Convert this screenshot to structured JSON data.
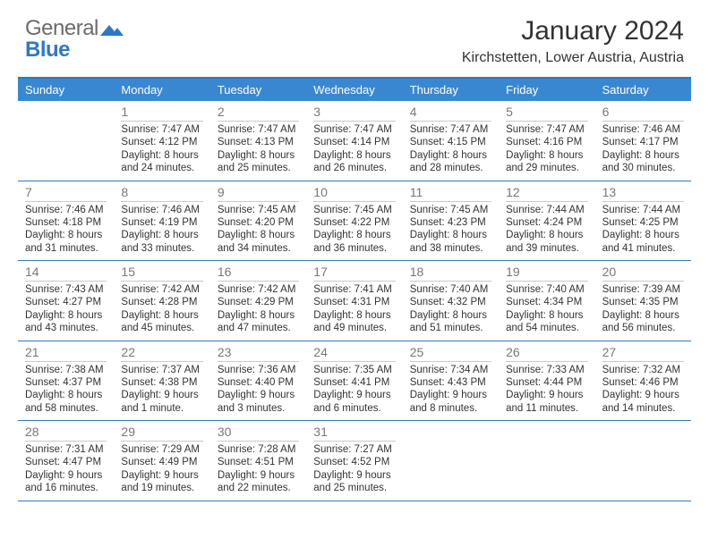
{
  "brand": {
    "word1": "General",
    "word2": "Blue",
    "text_color": "#6b6b6b",
    "accent_color": "#2f78c4"
  },
  "title": "January 2024",
  "subtitle": "Kirchstetten, Lower Austria, Austria",
  "calendar": {
    "header_bg": "#3a87d1",
    "header_text_color": "#ffffff",
    "rule_color": "#2f78c4",
    "cell_rule_color": "#c9c9c9",
    "daynum_color": "#777777",
    "body_text_color": "#333333",
    "body_fontsize": 11.5,
    "weekdays": [
      "Sunday",
      "Monday",
      "Tuesday",
      "Wednesday",
      "Thursday",
      "Friday",
      "Saturday"
    ],
    "weeks": [
      [
        {
          "num": "",
          "lines": [
            "",
            "",
            "",
            ""
          ]
        },
        {
          "num": "1",
          "lines": [
            "Sunrise: 7:47 AM",
            "Sunset: 4:12 PM",
            "Daylight: 8 hours",
            "and 24 minutes."
          ]
        },
        {
          "num": "2",
          "lines": [
            "Sunrise: 7:47 AM",
            "Sunset: 4:13 PM",
            "Daylight: 8 hours",
            "and 25 minutes."
          ]
        },
        {
          "num": "3",
          "lines": [
            "Sunrise: 7:47 AM",
            "Sunset: 4:14 PM",
            "Daylight: 8 hours",
            "and 26 minutes."
          ]
        },
        {
          "num": "4",
          "lines": [
            "Sunrise: 7:47 AM",
            "Sunset: 4:15 PM",
            "Daylight: 8 hours",
            "and 28 minutes."
          ]
        },
        {
          "num": "5",
          "lines": [
            "Sunrise: 7:47 AM",
            "Sunset: 4:16 PM",
            "Daylight: 8 hours",
            "and 29 minutes."
          ]
        },
        {
          "num": "6",
          "lines": [
            "Sunrise: 7:46 AM",
            "Sunset: 4:17 PM",
            "Daylight: 8 hours",
            "and 30 minutes."
          ]
        }
      ],
      [
        {
          "num": "7",
          "lines": [
            "Sunrise: 7:46 AM",
            "Sunset: 4:18 PM",
            "Daylight: 8 hours",
            "and 31 minutes."
          ]
        },
        {
          "num": "8",
          "lines": [
            "Sunrise: 7:46 AM",
            "Sunset: 4:19 PM",
            "Daylight: 8 hours",
            "and 33 minutes."
          ]
        },
        {
          "num": "9",
          "lines": [
            "Sunrise: 7:45 AM",
            "Sunset: 4:20 PM",
            "Daylight: 8 hours",
            "and 34 minutes."
          ]
        },
        {
          "num": "10",
          "lines": [
            "Sunrise: 7:45 AM",
            "Sunset: 4:22 PM",
            "Daylight: 8 hours",
            "and 36 minutes."
          ]
        },
        {
          "num": "11",
          "lines": [
            "Sunrise: 7:45 AM",
            "Sunset: 4:23 PM",
            "Daylight: 8 hours",
            "and 38 minutes."
          ]
        },
        {
          "num": "12",
          "lines": [
            "Sunrise: 7:44 AM",
            "Sunset: 4:24 PM",
            "Daylight: 8 hours",
            "and 39 minutes."
          ]
        },
        {
          "num": "13",
          "lines": [
            "Sunrise: 7:44 AM",
            "Sunset: 4:25 PM",
            "Daylight: 8 hours",
            "and 41 minutes."
          ]
        }
      ],
      [
        {
          "num": "14",
          "lines": [
            "Sunrise: 7:43 AM",
            "Sunset: 4:27 PM",
            "Daylight: 8 hours",
            "and 43 minutes."
          ]
        },
        {
          "num": "15",
          "lines": [
            "Sunrise: 7:42 AM",
            "Sunset: 4:28 PM",
            "Daylight: 8 hours",
            "and 45 minutes."
          ]
        },
        {
          "num": "16",
          "lines": [
            "Sunrise: 7:42 AM",
            "Sunset: 4:29 PM",
            "Daylight: 8 hours",
            "and 47 minutes."
          ]
        },
        {
          "num": "17",
          "lines": [
            "Sunrise: 7:41 AM",
            "Sunset: 4:31 PM",
            "Daylight: 8 hours",
            "and 49 minutes."
          ]
        },
        {
          "num": "18",
          "lines": [
            "Sunrise: 7:40 AM",
            "Sunset: 4:32 PM",
            "Daylight: 8 hours",
            "and 51 minutes."
          ]
        },
        {
          "num": "19",
          "lines": [
            "Sunrise: 7:40 AM",
            "Sunset: 4:34 PM",
            "Daylight: 8 hours",
            "and 54 minutes."
          ]
        },
        {
          "num": "20",
          "lines": [
            "Sunrise: 7:39 AM",
            "Sunset: 4:35 PM",
            "Daylight: 8 hours",
            "and 56 minutes."
          ]
        }
      ],
      [
        {
          "num": "21",
          "lines": [
            "Sunrise: 7:38 AM",
            "Sunset: 4:37 PM",
            "Daylight: 8 hours",
            "and 58 minutes."
          ]
        },
        {
          "num": "22",
          "lines": [
            "Sunrise: 7:37 AM",
            "Sunset: 4:38 PM",
            "Daylight: 9 hours",
            "and 1 minute."
          ]
        },
        {
          "num": "23",
          "lines": [
            "Sunrise: 7:36 AM",
            "Sunset: 4:40 PM",
            "Daylight: 9 hours",
            "and 3 minutes."
          ]
        },
        {
          "num": "24",
          "lines": [
            "Sunrise: 7:35 AM",
            "Sunset: 4:41 PM",
            "Daylight: 9 hours",
            "and 6 minutes."
          ]
        },
        {
          "num": "25",
          "lines": [
            "Sunrise: 7:34 AM",
            "Sunset: 4:43 PM",
            "Daylight: 9 hours",
            "and 8 minutes."
          ]
        },
        {
          "num": "26",
          "lines": [
            "Sunrise: 7:33 AM",
            "Sunset: 4:44 PM",
            "Daylight: 9 hours",
            "and 11 minutes."
          ]
        },
        {
          "num": "27",
          "lines": [
            "Sunrise: 7:32 AM",
            "Sunset: 4:46 PM",
            "Daylight: 9 hours",
            "and 14 minutes."
          ]
        }
      ],
      [
        {
          "num": "28",
          "lines": [
            "Sunrise: 7:31 AM",
            "Sunset: 4:47 PM",
            "Daylight: 9 hours",
            "and 16 minutes."
          ]
        },
        {
          "num": "29",
          "lines": [
            "Sunrise: 7:29 AM",
            "Sunset: 4:49 PM",
            "Daylight: 9 hours",
            "and 19 minutes."
          ]
        },
        {
          "num": "30",
          "lines": [
            "Sunrise: 7:28 AM",
            "Sunset: 4:51 PM",
            "Daylight: 9 hours",
            "and 22 minutes."
          ]
        },
        {
          "num": "31",
          "lines": [
            "Sunrise: 7:27 AM",
            "Sunset: 4:52 PM",
            "Daylight: 9 hours",
            "and 25 minutes."
          ]
        },
        {
          "num": "",
          "lines": [
            "",
            "",
            "",
            ""
          ]
        },
        {
          "num": "",
          "lines": [
            "",
            "",
            "",
            ""
          ]
        },
        {
          "num": "",
          "lines": [
            "",
            "",
            "",
            ""
          ]
        }
      ]
    ]
  }
}
